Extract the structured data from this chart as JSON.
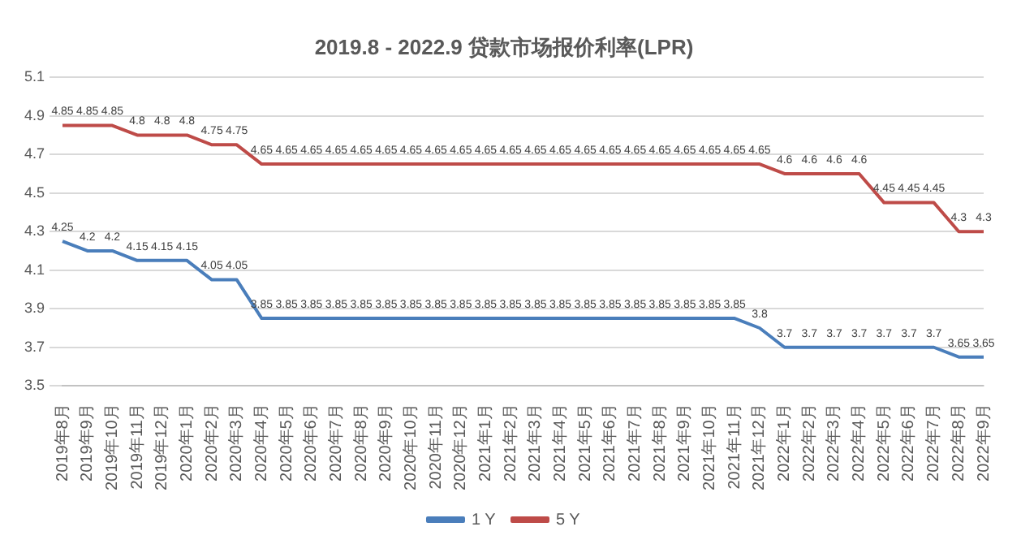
{
  "chart_data": {
    "type": "line",
    "title": "2019.8 - 2022.9 贷款市场报价利率(LPR)",
    "categories": [
      "2019年8月",
      "2019年9月",
      "2019年10月",
      "2019年11月",
      "2019年12月",
      "2020年1月",
      "2020年2月",
      "2020年3月",
      "2020年4月",
      "2020年5月",
      "2020年6月",
      "2020年7月",
      "2020年8月",
      "2020年9月",
      "2020年10月",
      "2020年11月",
      "2020年12月",
      "2021年1月",
      "2021年2月",
      "2021年3月",
      "2021年4月",
      "2021年5月",
      "2021年6月",
      "2021年7月",
      "2021年8月",
      "2021年9月",
      "2021年10月",
      "2021年11月",
      "2021年12月",
      "2022年1月",
      "2022年2月",
      "2022年3月",
      "2022年4月",
      "2022年5月",
      "2022年6月",
      "2022年7月",
      "2022年8月",
      "2022年9月"
    ],
    "series": [
      {
        "name": "1 Y",
        "color": "#4a7ebb",
        "values": [
          4.25,
          4.2,
          4.2,
          4.15,
          4.15,
          4.15,
          4.05,
          4.05,
          3.85,
          3.85,
          3.85,
          3.85,
          3.85,
          3.85,
          3.85,
          3.85,
          3.85,
          3.85,
          3.85,
          3.85,
          3.85,
          3.85,
          3.85,
          3.85,
          3.85,
          3.85,
          3.85,
          3.85,
          3.8,
          3.7,
          3.7,
          3.7,
          3.7,
          3.7,
          3.7,
          3.7,
          3.65,
          3.65
        ]
      },
      {
        "name": "5 Y",
        "color": "#be4b48",
        "values": [
          4.85,
          4.85,
          4.85,
          4.8,
          4.8,
          4.8,
          4.75,
          4.75,
          4.65,
          4.65,
          4.65,
          4.65,
          4.65,
          4.65,
          4.65,
          4.65,
          4.65,
          4.65,
          4.65,
          4.65,
          4.65,
          4.65,
          4.65,
          4.65,
          4.65,
          4.65,
          4.65,
          4.65,
          4.65,
          4.6,
          4.6,
          4.6,
          4.6,
          4.45,
          4.45,
          4.45,
          4.3,
          4.3
        ]
      }
    ],
    "ylim": [
      3.5,
      5.1
    ],
    "yticks": [
      3.5,
      3.7,
      3.9,
      4.1,
      4.3,
      4.5,
      4.7,
      4.9,
      5.1
    ],
    "grid": "y",
    "legend": "bottom",
    "marker": "none",
    "line_style": "solid",
    "data_labels": true
  }
}
